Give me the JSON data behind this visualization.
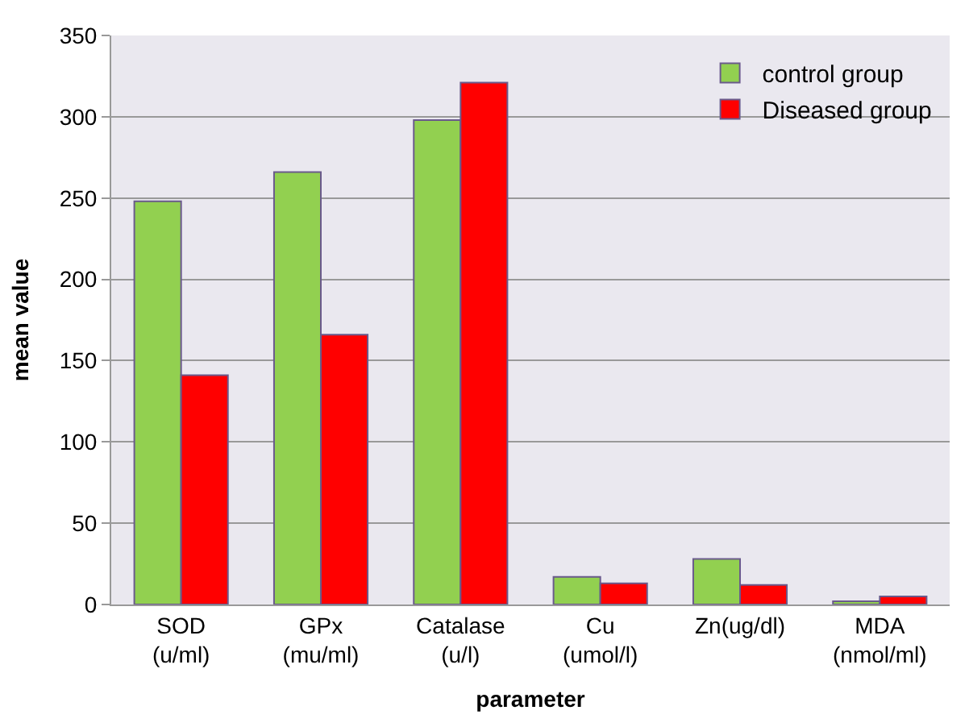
{
  "chart_data": {
    "type": "bar",
    "xlabel": "parameter",
    "ylabel": "mean value",
    "categories": [
      "SOD\n(u/ml)",
      "GPx\n(mu/ml)",
      "Catalase\n(u/l)",
      "Cu\n(umol/l)",
      "Zn(ug/dl)",
      "MDA\n(nmol/ml)"
    ],
    "series": [
      {
        "name": "control group",
        "color": "#92d050",
        "values": [
          248,
          266,
          298,
          17,
          28,
          2
        ]
      },
      {
        "name": "Diseased group",
        "color": "#ff0000",
        "values": [
          141,
          166,
          321,
          13,
          12,
          5
        ]
      }
    ],
    "ylim": [
      0,
      350
    ],
    "yticks": [
      0,
      50,
      100,
      150,
      200,
      250,
      300,
      350
    ],
    "grid": "y",
    "legend": "top right"
  }
}
